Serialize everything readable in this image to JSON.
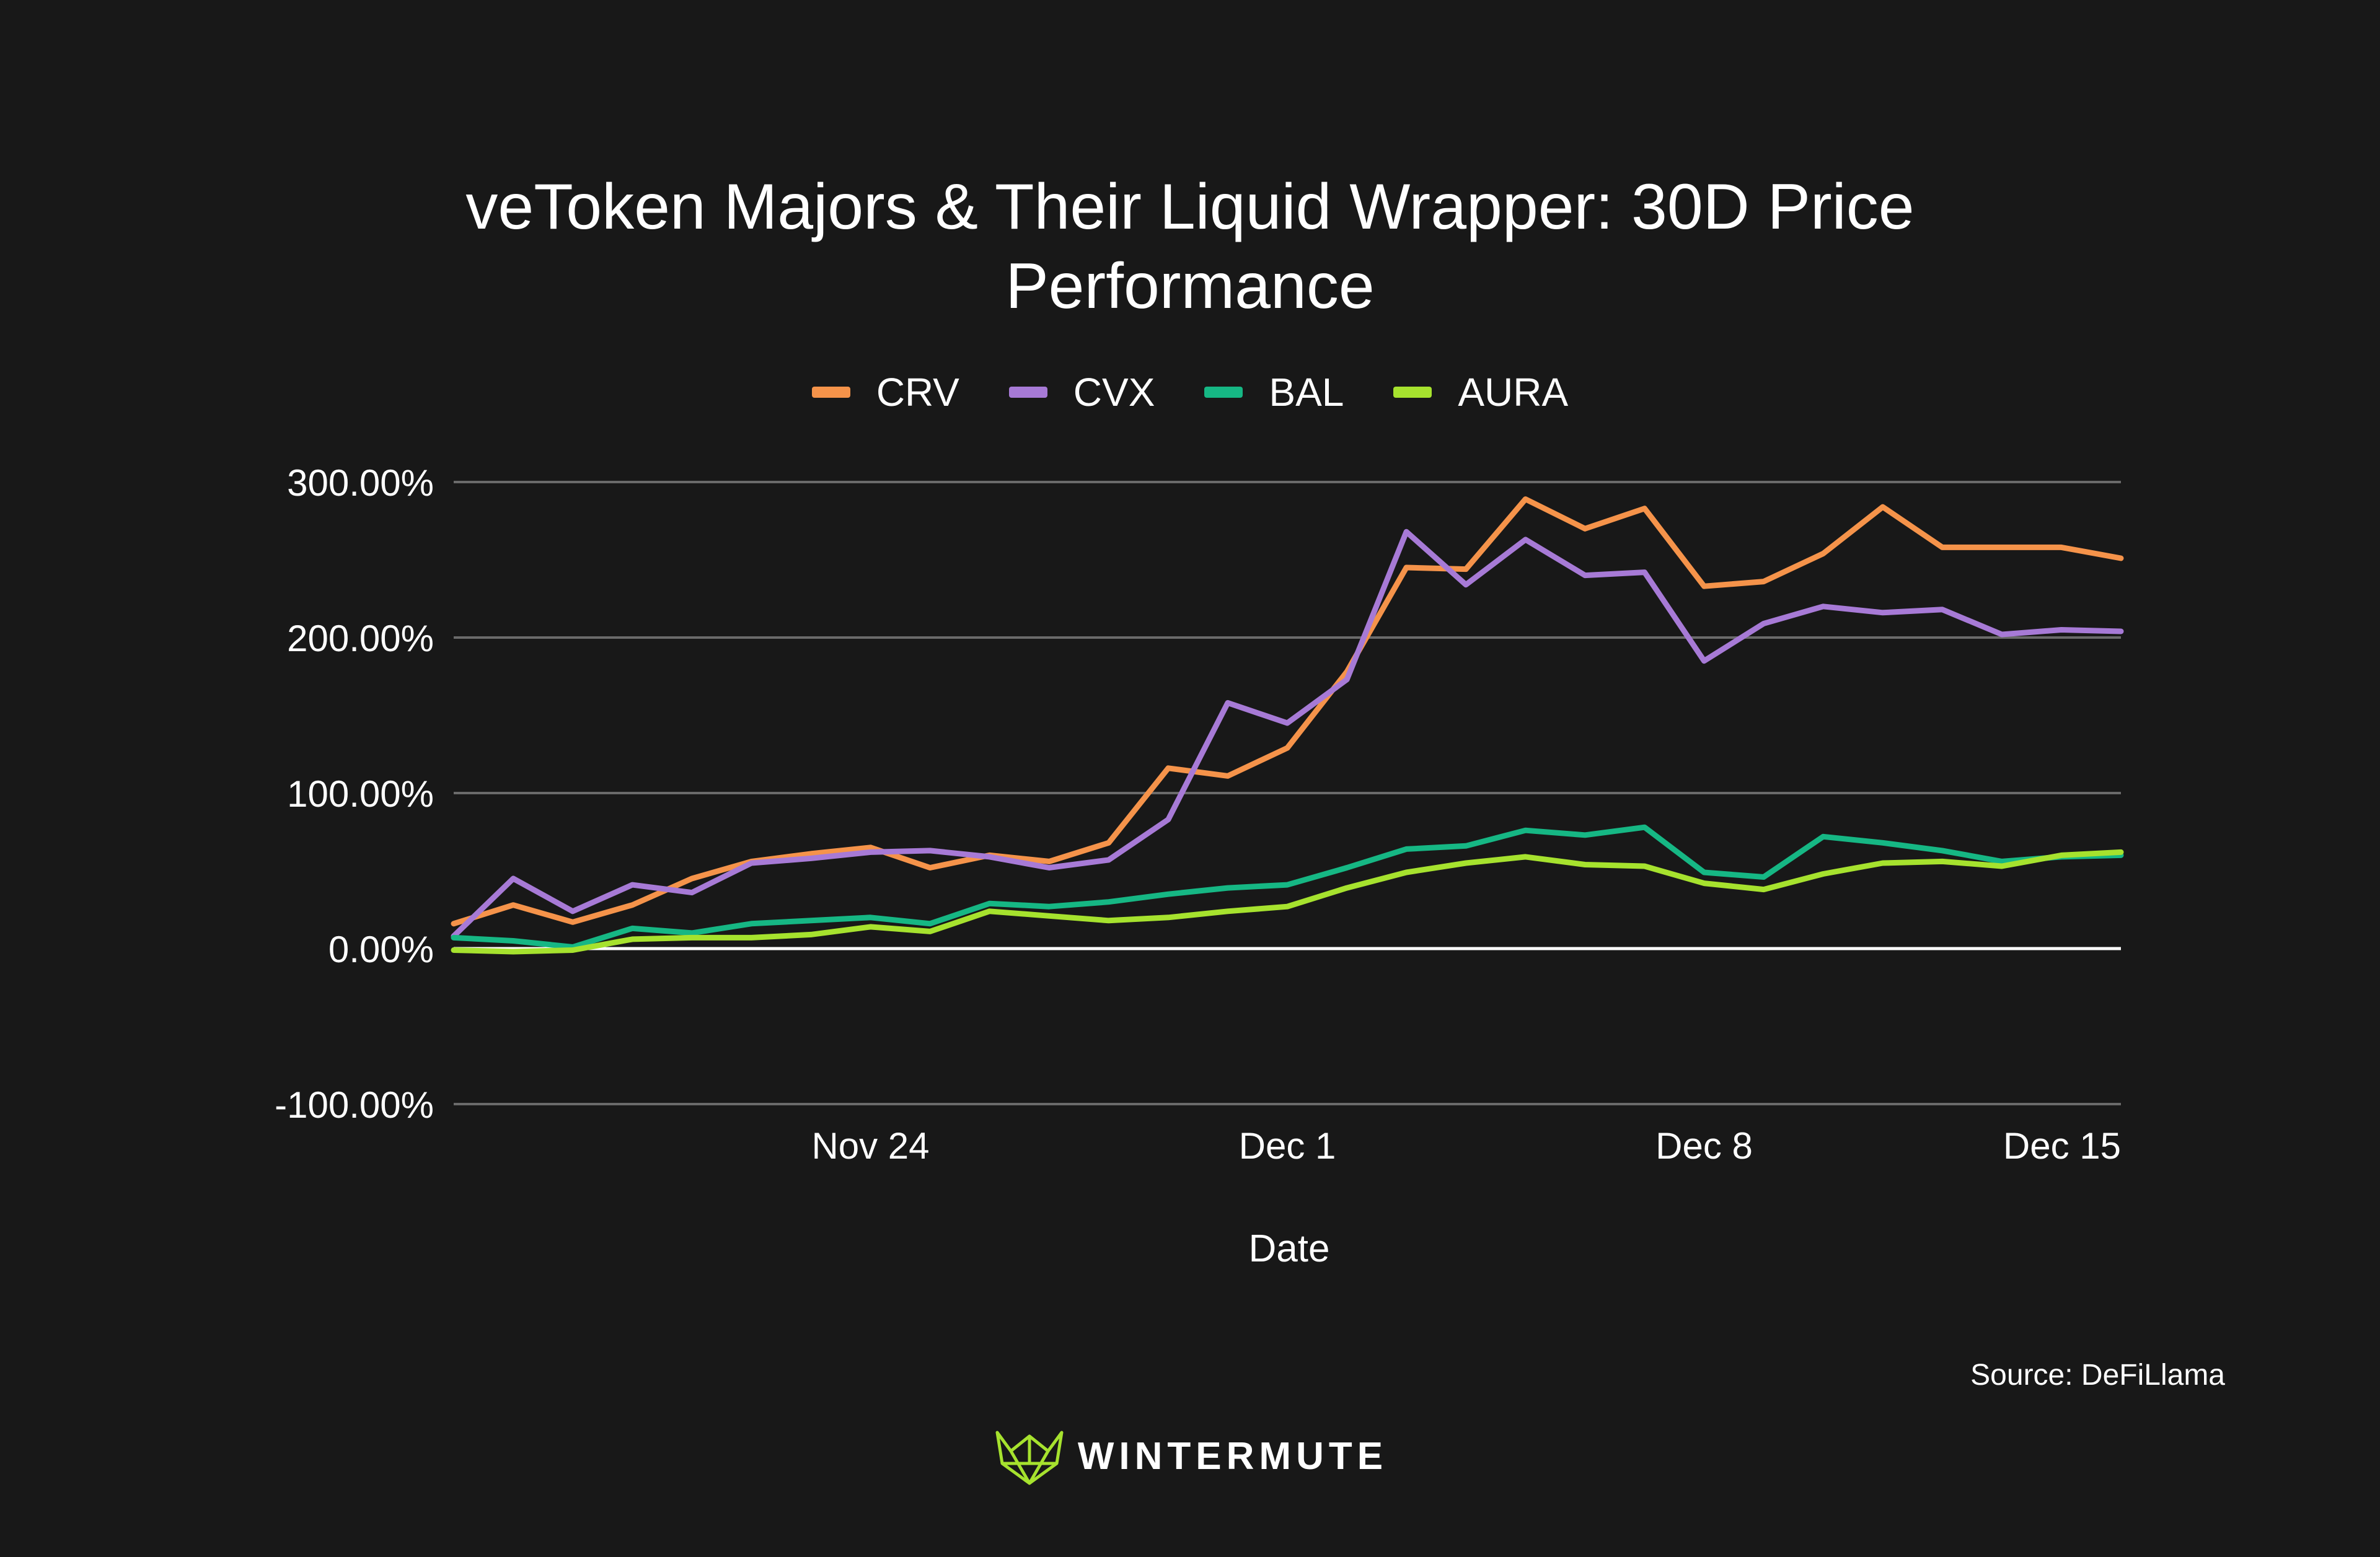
{
  "title_line1": "veToken Majors & Their Liquid Wrapper: 30D Price",
  "title_line2": "Performance",
  "source_note": "Source: DeFiLlama",
  "brand": {
    "name": "WINTERMUTE",
    "logo_icon": "wintermute-logo-icon",
    "color": "#a6e22e"
  },
  "chart_data": {
    "type": "line",
    "title": "veToken Majors & Their Liquid Wrapper: 30D Price Performance",
    "xlabel": "Date",
    "ylabel": "",
    "ylim": [
      -100,
      300
    ],
    "y_ticks": [
      300,
      200,
      100,
      0,
      -100
    ],
    "y_tick_labels": [
      "300.00%",
      "200.00%",
      "100.00%",
      "0.00%",
      "-100.00%"
    ],
    "x_tick_labels": [
      {
        "label": "Nov 24",
        "day": 24
      },
      {
        "label": "Dec 1",
        "day": 31
      },
      {
        "label": "Dec 8",
        "day": 38
      },
      {
        "label": "Dec 15",
        "day": 45
      }
    ],
    "x_days": [
      17,
      18,
      19,
      20,
      21,
      22,
      23,
      24,
      25,
      26,
      27,
      28,
      29,
      30,
      31,
      32,
      33,
      34,
      35,
      36,
      37,
      38,
      39,
      40,
      41,
      42,
      43,
      44,
      45
    ],
    "grid": true,
    "legend_position": "top-center",
    "series": [
      {
        "name": "CRV",
        "color": "#f5934a",
        "values": [
          16,
          28,
          17,
          28,
          45,
          56,
          61,
          65,
          52,
          60,
          56,
          68,
          116,
          111,
          129,
          178,
          245,
          244,
          289,
          270,
          283,
          233,
          236,
          254,
          284,
          258,
          258,
          258,
          251
        ]
      },
      {
        "name": "CVX",
        "color": "#a77ad6",
        "values": [
          8,
          45,
          24,
          41,
          36,
          55,
          58,
          62,
          63,
          59,
          52,
          57,
          83,
          158,
          145,
          173,
          268,
          234,
          263,
          240,
          242,
          185,
          209,
          220,
          216,
          218,
          202,
          205,
          204
        ]
      },
      {
        "name": "BAL",
        "color": "#16b784",
        "values": [
          7,
          5,
          1,
          13,
          10,
          16,
          18,
          20,
          16,
          29,
          27,
          30,
          35,
          39,
          41,
          52,
          64,
          66,
          76,
          73,
          78,
          49,
          46,
          72,
          68,
          63,
          56,
          59,
          60
        ]
      },
      {
        "name": "AURA",
        "color": "#a6e22e",
        "values": [
          -1,
          -2,
          -1,
          6,
          7,
          7,
          9,
          14,
          11,
          24,
          21,
          18,
          20,
          24,
          27,
          39,
          49,
          55,
          59,
          54,
          53,
          42,
          38,
          48,
          55,
          56,
          53,
          60,
          62
        ]
      }
    ]
  }
}
